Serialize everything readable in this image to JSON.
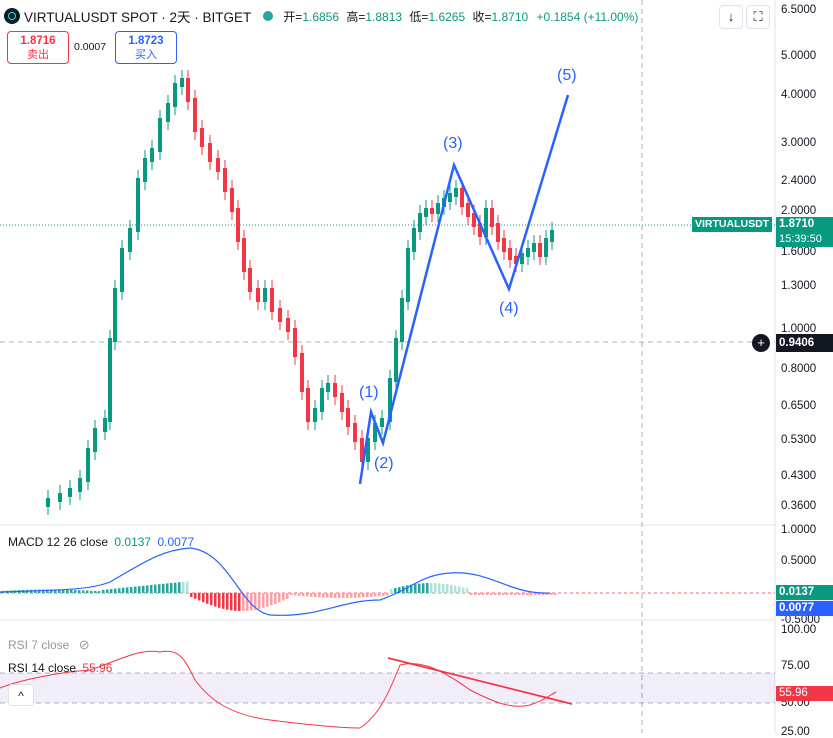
{
  "header": {
    "symbol": "VIRTUALUSDT SPOT · 2天 · BITGET",
    "open_label": "开=",
    "open": "1.6856",
    "high_label": "高=",
    "high": "1.8813",
    "low_label": "低=",
    "low": "1.6265",
    "close_label": "收=",
    "close": "1.8710",
    "change": "+0.1854 (+11.00%)",
    "btn_down": "↓",
    "btn_fullscreen": "⛶"
  },
  "trade": {
    "sell_price": "1.8716",
    "sell_label": "卖出",
    "spread": "0.0007",
    "buy_price": "1.8723",
    "buy_label": "买入"
  },
  "price_axis": [
    "6.5000",
    "5.0000",
    "4.0000",
    "3.0000",
    "2.4000",
    "2.0000",
    "1.6000",
    "1.3000",
    "1.0000",
    "0.8000",
    "0.6500",
    "0.5300",
    "0.4300",
    "0.3600"
  ],
  "price_tags": {
    "symbol_tag": "VIRTUALUSDT",
    "last_price": "1.8710",
    "countdown": "15:39:50",
    "crosshair_price": "0.9406",
    "plus_icon": "⊕"
  },
  "waves": [
    "(1)",
    "(2)",
    "(3)",
    "(4)",
    "(5)"
  ],
  "macd": {
    "label": "MACD 12 26 close",
    "v1": "0.0137",
    "v2": "0.0077",
    "axis": [
      "1.0000",
      "0.5000",
      "-0.5000"
    ],
    "tag1": "0.0137",
    "tag2": "0.0077"
  },
  "rsi7": {
    "label": "RSI 7 close"
  },
  "rsi14": {
    "label": "RSI 14 close",
    "value": "55.96",
    "axis": [
      "100.00",
      "75.00",
      "50.00",
      "25.00"
    ],
    "tag": "55.96",
    "collapse_icon": "^"
  },
  "colors": {
    "up": "#089981",
    "down": "#f23645",
    "wave": "#2962ff",
    "macd_line": "#2962ff",
    "rsi_line": "#f23645"
  }
}
